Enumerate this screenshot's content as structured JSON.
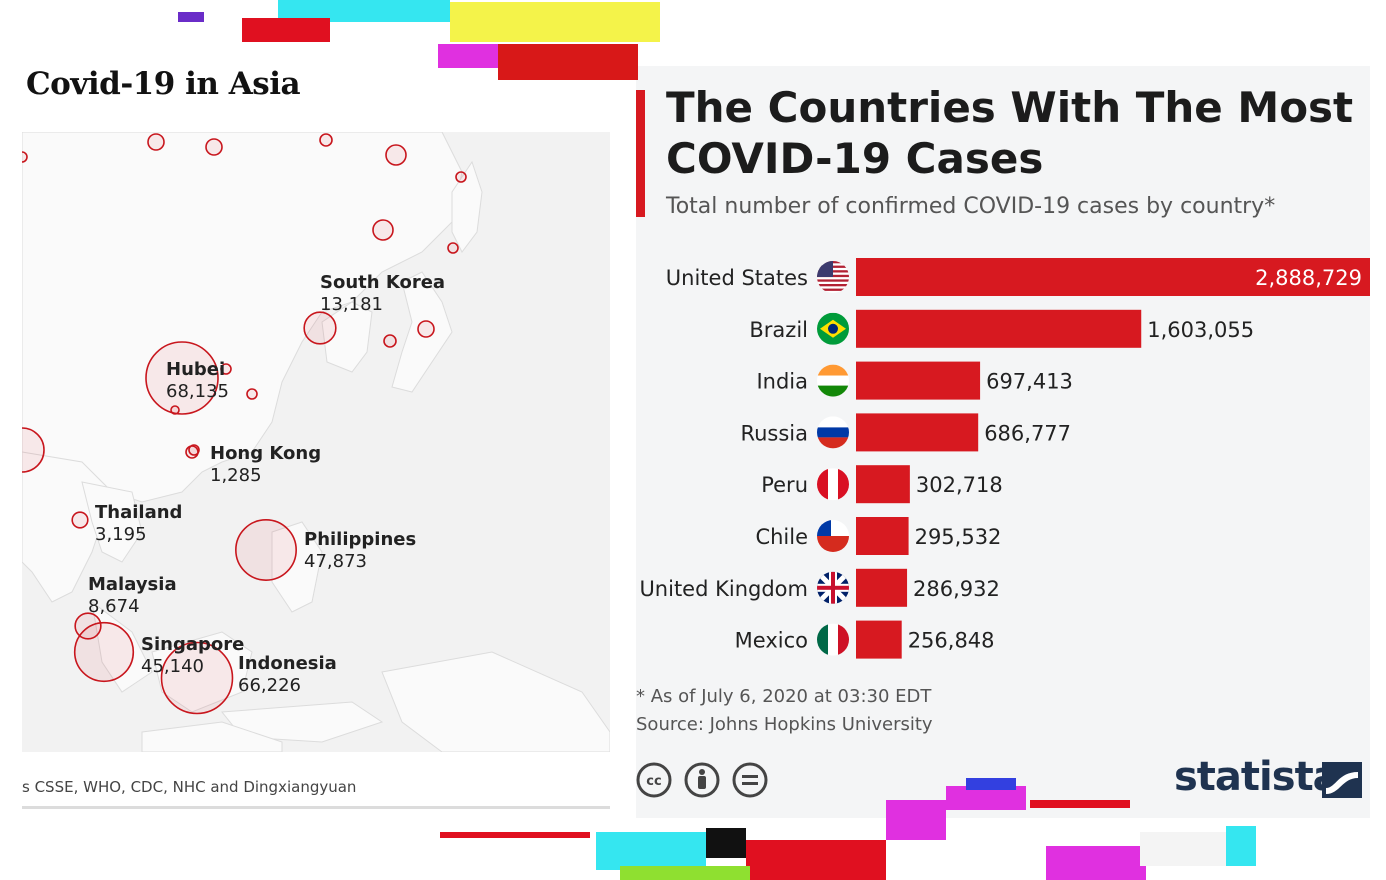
{
  "map": {
    "title": "Covid-19 in Asia",
    "source": "s CSSE, WHO, CDC, NHC and Dingxiangyuan",
    "labels": [
      {
        "name": "South Korea",
        "value": "13,181"
      },
      {
        "name": "Hubei",
        "value": "68,135"
      },
      {
        "name": "Hong Kong",
        "value": "1,285"
      },
      {
        "name": "Thailand",
        "value": "3,195"
      },
      {
        "name": "Philippines",
        "value": "47,873"
      },
      {
        "name": "Malaysia",
        "value": "8,674"
      },
      {
        "name": "Singapore",
        "value": "45,140"
      },
      {
        "name": "Indonesia",
        "value": "66,226"
      }
    ]
  },
  "chart_data": {
    "type": "bar",
    "title": "The Countries With The Most COVID-19 Cases",
    "subtitle": "Total number of confirmed COVID-19 cases by country*",
    "categories": [
      "United States",
      "Brazil",
      "India",
      "Russia",
      "Peru",
      "Chile",
      "United Kingdom",
      "Mexico"
    ],
    "values": [
      2888729,
      1603055,
      697413,
      686777,
      302718,
      295532,
      286932,
      256848
    ],
    "value_labels": [
      "2,888,729",
      "1,603,055",
      "697,413",
      "686,777",
      "302,718",
      "295,532",
      "286,932",
      "256,848"
    ],
    "orientation": "horizontal",
    "bar_color": "#d71920",
    "xlim": [
      0,
      2888729
    ],
    "note": "* As of July 6, 2020 at 03:30 EDT",
    "source": "Source: Johns Hopkins University"
  },
  "brand": "statista",
  "icons": [
    "cc-icon",
    "by-icon",
    "nd-icon",
    "flag-icon",
    "statista-logo-icon"
  ]
}
